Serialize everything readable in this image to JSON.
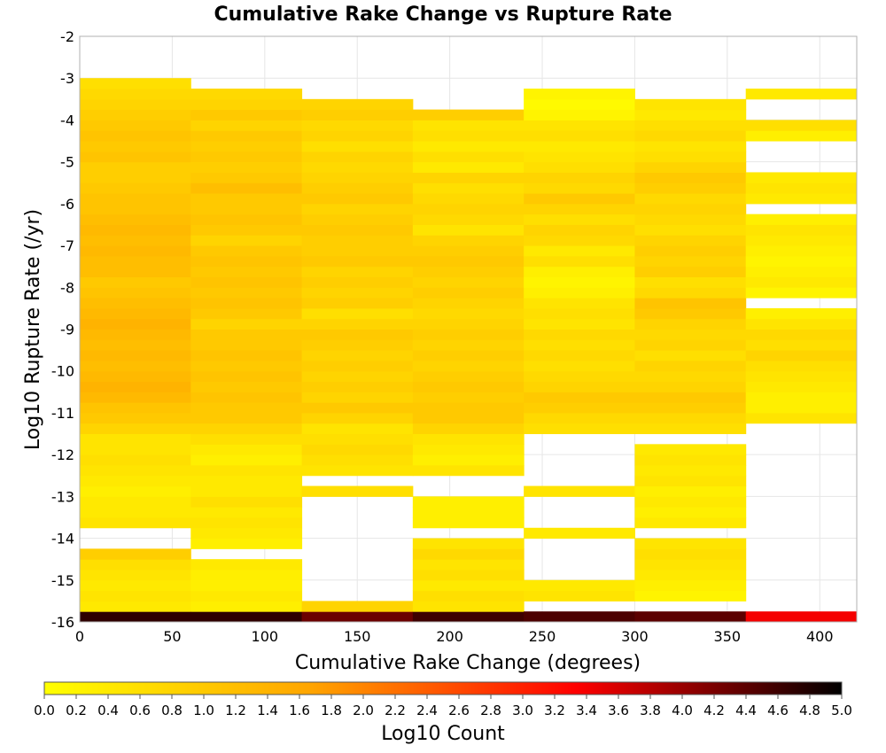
{
  "chart_data": {
    "type": "heatmap",
    "title": "Cumulative Rake Change vs Rupture Rate",
    "xlabel": "Cumulative Rake Change (degrees)",
    "ylabel": "Log10 Rupture Rate (/yr)",
    "xlim": [
      0,
      420
    ],
    "ylim": [
      -16,
      -2
    ],
    "x_ticks": [
      "0",
      "50",
      "100",
      "150",
      "200",
      "250",
      "300",
      "350",
      "400"
    ],
    "y_ticks": [
      "-2",
      "-3",
      "-4",
      "-5",
      "-6",
      "-7",
      "-8",
      "-9",
      "-10",
      "-11",
      "-12",
      "-13",
      "-14",
      "-15",
      "-16"
    ],
    "x_bin_width": 60,
    "y_bin_width": 0.25,
    "grid": true,
    "colorbar": {
      "label": "Log10 Count",
      "min": 0.0,
      "max": 5.0,
      "tick_labels": [
        "0.0",
        "0.2",
        "0.4",
        "0.6",
        "0.8",
        "1.0",
        "1.2",
        "1.4",
        "1.6",
        "1.8",
        "2.0",
        "2.2",
        "2.4",
        "2.6",
        "2.8",
        "3.0",
        "3.2",
        "3.4",
        "3.6",
        "3.8",
        "4.0",
        "4.2",
        "4.4",
        "4.6",
        "4.8",
        "5.0"
      ],
      "colormap": [
        "#ffff00",
        "#ffa500",
        "#ff0000",
        "#000000"
      ]
    },
    "columns": [
      {
        "x_start": 0,
        "cells": [
          [
            -16,
            4.7
          ],
          [
            -15.75,
            0.4
          ],
          [
            -15.5,
            0.5
          ],
          [
            -15.25,
            0.4
          ],
          [
            -15,
            0.5
          ],
          [
            -14.75,
            0.6
          ],
          [
            -14.5,
            0.9
          ],
          [
            -13.75,
            0.5
          ],
          [
            -13.5,
            0.4
          ],
          [
            -13.25,
            0.4
          ],
          [
            -13,
            0.3
          ],
          [
            -12.75,
            0.4
          ],
          [
            -12.5,
            0.5
          ],
          [
            -12.25,
            0.6
          ],
          [
            -12,
            0.5
          ],
          [
            -11.75,
            0.5
          ],
          [
            -11.5,
            0.8
          ],
          [
            -11.25,
            1.0
          ],
          [
            -11,
            1.1
          ],
          [
            -10.75,
            1.3
          ],
          [
            -10.5,
            1.4
          ],
          [
            -10.25,
            1.3
          ],
          [
            -10,
            1.2
          ],
          [
            -9.75,
            1.3
          ],
          [
            -9.5,
            1.2
          ],
          [
            -9.25,
            1.3
          ],
          [
            -9,
            1.4
          ],
          [
            -8.75,
            1.3
          ],
          [
            -8.5,
            1.2
          ],
          [
            -8.25,
            1.1
          ],
          [
            -8,
            1.0
          ],
          [
            -7.75,
            1.2
          ],
          [
            -7.5,
            1.2
          ],
          [
            -7.25,
            1.3
          ],
          [
            -7,
            1.2
          ],
          [
            -6.75,
            1.3
          ],
          [
            -6.5,
            1.2
          ],
          [
            -6.25,
            1.1
          ],
          [
            -6,
            1.1
          ],
          [
            -5.75,
            1.0
          ],
          [
            -5.5,
            0.9
          ],
          [
            -5.25,
            0.9
          ],
          [
            -5,
            1.1
          ],
          [
            -4.75,
            1.0
          ],
          [
            -4.5,
            1.1
          ],
          [
            -4.25,
            1.0
          ],
          [
            -4,
            0.9
          ],
          [
            -3.75,
            0.8
          ],
          [
            -3.5,
            0.7
          ],
          [
            -3.25,
            0.6
          ]
        ]
      },
      {
        "x_start": 60,
        "cells": [
          [
            -16,
            4.7
          ],
          [
            -15.75,
            0.3
          ],
          [
            -15.5,
            0.4
          ],
          [
            -15.25,
            0.3
          ],
          [
            -15,
            0.3
          ],
          [
            -14.75,
            0.4
          ],
          [
            -14.25,
            0.3
          ],
          [
            -14,
            0.4
          ],
          [
            -13.75,
            0.5
          ],
          [
            -13.5,
            0.4
          ],
          [
            -13.25,
            0.6
          ],
          [
            -13,
            0.4
          ],
          [
            -12.75,
            0.4
          ],
          [
            -12.5,
            0.5
          ],
          [
            -12.25,
            0.3
          ],
          [
            -12,
            0.4
          ],
          [
            -11.75,
            0.6
          ],
          [
            -11.5,
            0.8
          ],
          [
            -11.25,
            1.0
          ],
          [
            -11,
            1.0
          ],
          [
            -10.75,
            1.1
          ],
          [
            -10.5,
            1.0
          ],
          [
            -10.25,
            1.1
          ],
          [
            -10,
            1.0
          ],
          [
            -9.75,
            1.1
          ],
          [
            -9.5,
            1.0
          ],
          [
            -9.25,
            1.0
          ],
          [
            -9,
            0.8
          ],
          [
            -8.75,
            1.0
          ],
          [
            -8.5,
            1.1
          ],
          [
            -8.25,
            1.0
          ],
          [
            -8,
            1.1
          ],
          [
            -7.75,
            1.0
          ],
          [
            -7.5,
            1.1
          ],
          [
            -7.25,
            1.0
          ],
          [
            -7,
            0.8
          ],
          [
            -6.75,
            1.0
          ],
          [
            -6.5,
            1.1
          ],
          [
            -6.25,
            1.0
          ],
          [
            -6,
            1.0
          ],
          [
            -5.75,
            1.2
          ],
          [
            -5.5,
            1.0
          ],
          [
            -5.25,
            0.9
          ],
          [
            -5,
            1.0
          ],
          [
            -4.75,
            0.9
          ],
          [
            -4.5,
            1.0
          ],
          [
            -4.25,
            0.8
          ],
          [
            -4,
            1.0
          ],
          [
            -3.75,
            0.8
          ],
          [
            -3.5,
            0.7
          ]
        ]
      },
      {
        "x_start": 120,
        "cells": [
          [
            -16,
            4.3
          ],
          [
            -15.75,
            0.8
          ],
          [
            -13,
            0.6
          ],
          [
            -12.5,
            0.5
          ],
          [
            -12.25,
            0.6
          ],
          [
            -12,
            0.7
          ],
          [
            -11.75,
            0.6
          ],
          [
            -11.5,
            0.5
          ],
          [
            -11.25,
            0.8
          ],
          [
            -11,
            1.0
          ],
          [
            -10.75,
            0.8
          ],
          [
            -10.5,
            0.9
          ],
          [
            -10.25,
            0.8
          ],
          [
            -10,
            0.9
          ],
          [
            -9.75,
            0.8
          ],
          [
            -9.5,
            0.9
          ],
          [
            -9.25,
            1.0
          ],
          [
            -9,
            0.8
          ],
          [
            -8.75,
            0.6
          ],
          [
            -8.5,
            0.9
          ],
          [
            -8.25,
            0.8
          ],
          [
            -8,
            0.9
          ],
          [
            -7.75,
            0.8
          ],
          [
            -7.5,
            1.0
          ],
          [
            -7.25,
            0.9
          ],
          [
            -7,
            0.9
          ],
          [
            -6.75,
            1.0
          ],
          [
            -6.5,
            0.9
          ],
          [
            -6.25,
            0.8
          ],
          [
            -6,
            1.0
          ],
          [
            -5.75,
            0.9
          ],
          [
            -5.5,
            0.8
          ],
          [
            -5.25,
            0.7
          ],
          [
            -5,
            0.8
          ],
          [
            -4.75,
            0.6
          ],
          [
            -4.5,
            0.8
          ],
          [
            -4.25,
            0.7
          ],
          [
            -4,
            0.9
          ],
          [
            -3.75,
            0.8
          ]
        ]
      },
      {
        "x_start": 180,
        "cells": [
          [
            -16,
            4.6
          ],
          [
            -15.75,
            0.5
          ],
          [
            -15.5,
            0.6
          ],
          [
            -15.25,
            0.4
          ],
          [
            -15,
            0.6
          ],
          [
            -14.75,
            0.5
          ],
          [
            -14.5,
            0.7
          ],
          [
            -14.25,
            0.5
          ],
          [
            -13.75,
            0.3
          ],
          [
            -13.5,
            0.3
          ],
          [
            -13.25,
            0.3
          ],
          [
            -12.5,
            0.5
          ],
          [
            -12.25,
            0.3
          ],
          [
            -12,
            0.4
          ],
          [
            -11.75,
            0.5
          ],
          [
            -11.5,
            0.8
          ],
          [
            -11.25,
            1.0
          ],
          [
            -11,
            1.0
          ],
          [
            -10.75,
            0.9
          ],
          [
            -10.5,
            1.0
          ],
          [
            -10.25,
            0.9
          ],
          [
            -10,
            0.8
          ],
          [
            -9.75,
            0.9
          ],
          [
            -9.5,
            0.8
          ],
          [
            -9.25,
            0.9
          ],
          [
            -9,
            0.8
          ],
          [
            -8.75,
            0.7
          ],
          [
            -8.5,
            0.8
          ],
          [
            -8.25,
            0.9
          ],
          [
            -8,
            0.8
          ],
          [
            -7.75,
            0.9
          ],
          [
            -7.5,
            1.0
          ],
          [
            -7.25,
            0.9
          ],
          [
            -7,
            0.8
          ],
          [
            -6.75,
            0.5
          ],
          [
            -6.5,
            0.7
          ],
          [
            -6.25,
            0.8
          ],
          [
            -6,
            0.7
          ],
          [
            -5.75,
            0.6
          ],
          [
            -5.5,
            0.8
          ],
          [
            -5.25,
            0.4
          ],
          [
            -5,
            0.6
          ],
          [
            -4.75,
            0.4
          ],
          [
            -4.5,
            0.6
          ],
          [
            -4.25,
            0.5
          ],
          [
            -4,
            0.9
          ]
        ]
      },
      {
        "x_start": 240,
        "cells": [
          [
            -16,
            4.5
          ],
          [
            -15.5,
            0.5
          ],
          [
            -15.25,
            0.4
          ],
          [
            -14,
            0.4
          ],
          [
            -13,
            0.5
          ],
          [
            -11.5,
            0.6
          ],
          [
            -11.25,
            0.7
          ],
          [
            -11,
            0.9
          ],
          [
            -10.75,
            1.0
          ],
          [
            -10.5,
            0.8
          ],
          [
            -10.25,
            0.7
          ],
          [
            -10,
            0.6
          ],
          [
            -9.75,
            0.7
          ],
          [
            -9.5,
            0.6
          ],
          [
            -9.25,
            0.7
          ],
          [
            -9,
            0.5
          ],
          [
            -8.75,
            0.6
          ],
          [
            -8.5,
            0.5
          ],
          [
            -8.25,
            0.3
          ],
          [
            -8,
            0.2
          ],
          [
            -7.75,
            0.3
          ],
          [
            -7.5,
            0.6
          ],
          [
            -7.25,
            0.4
          ],
          [
            -7,
            0.7
          ],
          [
            -6.75,
            0.8
          ],
          [
            -6.5,
            0.6
          ],
          [
            -6.25,
            0.8
          ],
          [
            -6,
            1.0
          ],
          [
            -5.75,
            0.7
          ],
          [
            -5.5,
            0.8
          ],
          [
            -5.25,
            0.6
          ],
          [
            -5,
            0.5
          ],
          [
            -4.75,
            0.4
          ],
          [
            -4.5,
            0.6
          ],
          [
            -4.25,
            0.5
          ],
          [
            -4,
            0.2
          ],
          [
            -3.75,
            0.1
          ],
          [
            -3.5,
            0.2
          ]
        ]
      },
      {
        "x_start": 300,
        "cells": [
          [
            -16,
            4.4
          ],
          [
            -15.5,
            0.2
          ],
          [
            -15.25,
            0.3
          ],
          [
            -15,
            0.4
          ],
          [
            -14.75,
            0.5
          ],
          [
            -14.5,
            0.6
          ],
          [
            -14.25,
            0.5
          ],
          [
            -13.75,
            0.4
          ],
          [
            -13.5,
            0.3
          ],
          [
            -13.25,
            0.4
          ],
          [
            -13,
            0.3
          ],
          [
            -12.75,
            0.5
          ],
          [
            -12.5,
            0.4
          ],
          [
            -12.25,
            0.5
          ],
          [
            -12,
            0.4
          ],
          [
            -11.5,
            0.6
          ],
          [
            -11.25,
            0.7
          ],
          [
            -11,
            0.9
          ],
          [
            -10.75,
            1.0
          ],
          [
            -10.5,
            0.8
          ],
          [
            -10.25,
            0.7
          ],
          [
            -10,
            0.8
          ],
          [
            -9.75,
            0.6
          ],
          [
            -9.5,
            0.8
          ],
          [
            -9.25,
            0.7
          ],
          [
            -9,
            0.8
          ],
          [
            -8.75,
            1.0
          ],
          [
            -8.5,
            1.1
          ],
          [
            -8.25,
            0.7
          ],
          [
            -8,
            0.6
          ],
          [
            -7.75,
            0.9
          ],
          [
            -7.5,
            0.8
          ],
          [
            -7.25,
            0.9
          ],
          [
            -7,
            0.8
          ],
          [
            -6.75,
            0.6
          ],
          [
            -6.5,
            0.7
          ],
          [
            -6.25,
            0.8
          ],
          [
            -6,
            0.7
          ],
          [
            -5.75,
            0.9
          ],
          [
            -5.5,
            1.0
          ],
          [
            -5.25,
            0.8
          ],
          [
            -5,
            0.6
          ],
          [
            -4.75,
            0.5
          ],
          [
            -4.5,
            0.7
          ],
          [
            -4.25,
            0.6
          ],
          [
            -4,
            0.4
          ],
          [
            -3.75,
            0.5
          ]
        ]
      },
      {
        "x_start": 360,
        "cells": [
          [
            -16,
            3.4
          ],
          [
            -11.25,
            0.5
          ],
          [
            -11,
            0.3
          ],
          [
            -10.75,
            0.3
          ],
          [
            -10.5,
            0.4
          ],
          [
            -10.25,
            0.5
          ],
          [
            -10,
            0.6
          ],
          [
            -9.75,
            0.8
          ],
          [
            -9.5,
            0.6
          ],
          [
            -9.25,
            0.7
          ],
          [
            -9,
            0.5
          ],
          [
            -8.75,
            0.3
          ],
          [
            -8.25,
            0.2
          ],
          [
            -8,
            0.4
          ],
          [
            -7.75,
            0.3
          ],
          [
            -7.5,
            0.2
          ],
          [
            -7.25,
            0.3
          ],
          [
            -7,
            0.4
          ],
          [
            -6.75,
            0.5
          ],
          [
            -6.5,
            0.3
          ],
          [
            -6,
            0.4
          ],
          [
            -5.75,
            0.5
          ],
          [
            -5.5,
            0.4
          ],
          [
            -4.5,
            0.3
          ],
          [
            -4.25,
            0.6
          ],
          [
            -3.5,
            0.4
          ]
        ]
      }
    ]
  }
}
